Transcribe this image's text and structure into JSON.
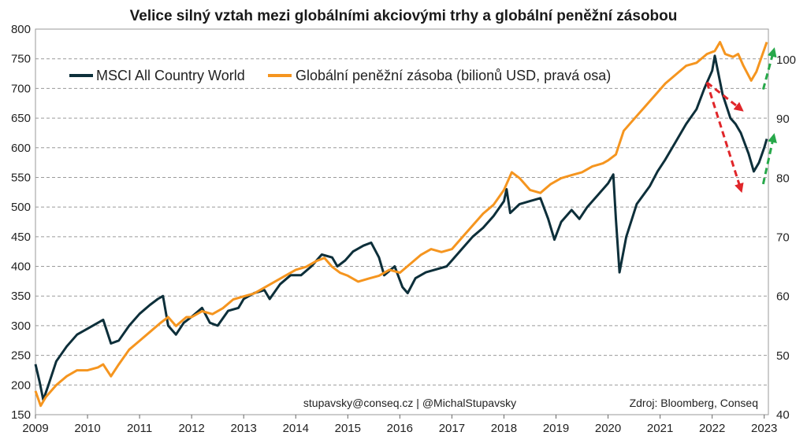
{
  "chart_data": {
    "type": "line",
    "title": "Velice silný vztah mezi globálními akciovými trhy a globální peněžní zásobou",
    "x_ticks": [
      "2009",
      "2010",
      "2011",
      "2012",
      "2013",
      "2014",
      "2015",
      "2016",
      "2017",
      "2018",
      "2019",
      "2020",
      "2021",
      "2022",
      "2023"
    ],
    "y_left": {
      "lim": [
        150,
        800
      ],
      "ticks": [
        150,
        200,
        250,
        300,
        350,
        400,
        450,
        500,
        550,
        600,
        650,
        700,
        750,
        800
      ]
    },
    "y_right": {
      "lim": [
        40,
        105.2
      ],
      "ticks": [
        40,
        50,
        60,
        70,
        80,
        90,
        100
      ]
    },
    "grid": true,
    "legend_position": "top-left",
    "series": [
      {
        "name": "MSCI All Country World",
        "axis": "left",
        "color": "#0d2f3a",
        "points": [
          [
            2009.0,
            235
          ],
          [
            2009.08,
            205
          ],
          [
            2009.15,
            175
          ],
          [
            2009.25,
            200
          ],
          [
            2009.4,
            240
          ],
          [
            2009.6,
            265
          ],
          [
            2009.8,
            285
          ],
          [
            2010.0,
            295
          ],
          [
            2010.2,
            305
          ],
          [
            2010.3,
            310
          ],
          [
            2010.45,
            270
          ],
          [
            2010.6,
            275
          ],
          [
            2010.8,
            300
          ],
          [
            2011.0,
            320
          ],
          [
            2011.2,
            335
          ],
          [
            2011.35,
            345
          ],
          [
            2011.45,
            350
          ],
          [
            2011.55,
            300
          ],
          [
            2011.7,
            285
          ],
          [
            2011.85,
            305
          ],
          [
            2012.0,
            315
          ],
          [
            2012.2,
            330
          ],
          [
            2012.35,
            305
          ],
          [
            2012.5,
            300
          ],
          [
            2012.7,
            325
          ],
          [
            2012.9,
            330
          ],
          [
            2013.0,
            345
          ],
          [
            2013.2,
            355
          ],
          [
            2013.4,
            360
          ],
          [
            2013.5,
            345
          ],
          [
            2013.7,
            370
          ],
          [
            2013.9,
            385
          ],
          [
            2014.1,
            385
          ],
          [
            2014.3,
            400
          ],
          [
            2014.5,
            420
          ],
          [
            2014.7,
            415
          ],
          [
            2014.8,
            400
          ],
          [
            2014.95,
            410
          ],
          [
            2015.1,
            425
          ],
          [
            2015.3,
            435
          ],
          [
            2015.45,
            440
          ],
          [
            2015.6,
            415
          ],
          [
            2015.7,
            385
          ],
          [
            2015.9,
            400
          ],
          [
            2016.05,
            365
          ],
          [
            2016.15,
            355
          ],
          [
            2016.3,
            380
          ],
          [
            2016.5,
            390
          ],
          [
            2016.7,
            395
          ],
          [
            2016.9,
            400
          ],
          [
            2017.0,
            410
          ],
          [
            2017.2,
            430
          ],
          [
            2017.4,
            450
          ],
          [
            2017.6,
            465
          ],
          [
            2017.8,
            485
          ],
          [
            2018.0,
            510
          ],
          [
            2018.05,
            530
          ],
          [
            2018.12,
            490
          ],
          [
            2018.3,
            505
          ],
          [
            2018.5,
            510
          ],
          [
            2018.7,
            515
          ],
          [
            2018.85,
            480
          ],
          [
            2018.97,
            445
          ],
          [
            2019.1,
            475
          ],
          [
            2019.3,
            495
          ],
          [
            2019.45,
            480
          ],
          [
            2019.6,
            500
          ],
          [
            2019.8,
            520
          ],
          [
            2020.0,
            540
          ],
          [
            2020.1,
            555
          ],
          [
            2020.15,
            480
          ],
          [
            2020.22,
            390
          ],
          [
            2020.35,
            450
          ],
          [
            2020.55,
            505
          ],
          [
            2020.8,
            535
          ],
          [
            2020.95,
            560
          ],
          [
            2021.1,
            580
          ],
          [
            2021.3,
            610
          ],
          [
            2021.5,
            640
          ],
          [
            2021.7,
            665
          ],
          [
            2021.85,
            700
          ],
          [
            2022.0,
            730
          ],
          [
            2022.05,
            755
          ],
          [
            2022.2,
            690
          ],
          [
            2022.35,
            650
          ],
          [
            2022.45,
            640
          ],
          [
            2022.55,
            625
          ],
          [
            2022.7,
            590
          ],
          [
            2022.8,
            560
          ],
          [
            2022.9,
            575
          ],
          [
            2023.0,
            600
          ],
          [
            2023.05,
            615
          ]
        ]
      },
      {
        "name": "Globální peněžní zásoba (bilionů USD, pravá osa)",
        "axis": "right",
        "color": "#f5951f",
        "points": [
          [
            2009.0,
            44
          ],
          [
            2009.1,
            41.5
          ],
          [
            2009.2,
            43
          ],
          [
            2009.4,
            45
          ],
          [
            2009.6,
            46.5
          ],
          [
            2009.8,
            47.5
          ],
          [
            2010.0,
            47.5
          ],
          [
            2010.2,
            48
          ],
          [
            2010.3,
            48.5
          ],
          [
            2010.45,
            46.5
          ],
          [
            2010.6,
            48.5
          ],
          [
            2010.8,
            51
          ],
          [
            2011.0,
            52.5
          ],
          [
            2011.2,
            54
          ],
          [
            2011.4,
            55.5
          ],
          [
            2011.55,
            56.5
          ],
          [
            2011.7,
            55
          ],
          [
            2011.9,
            56.5
          ],
          [
            2012.0,
            56.5
          ],
          [
            2012.2,
            57.5
          ],
          [
            2012.4,
            57
          ],
          [
            2012.6,
            58
          ],
          [
            2012.8,
            59.5
          ],
          [
            2013.0,
            60
          ],
          [
            2013.2,
            60.5
          ],
          [
            2013.4,
            61.5
          ],
          [
            2013.6,
            62.5
          ],
          [
            2013.8,
            63.5
          ],
          [
            2014.0,
            64.5
          ],
          [
            2014.2,
            65
          ],
          [
            2014.4,
            66
          ],
          [
            2014.55,
            66.5
          ],
          [
            2014.7,
            65
          ],
          [
            2014.85,
            64
          ],
          [
            2015.0,
            63.5
          ],
          [
            2015.2,
            62.5
          ],
          [
            2015.4,
            63
          ],
          [
            2015.6,
            63.5
          ],
          [
            2015.8,
            64.5
          ],
          [
            2016.0,
            64
          ],
          [
            2016.2,
            65.5
          ],
          [
            2016.4,
            67
          ],
          [
            2016.6,
            68
          ],
          [
            2016.8,
            67.5
          ],
          [
            2017.0,
            68
          ],
          [
            2017.2,
            70
          ],
          [
            2017.4,
            72
          ],
          [
            2017.6,
            74
          ],
          [
            2017.8,
            75.5
          ],
          [
            2018.0,
            78
          ],
          [
            2018.15,
            81
          ],
          [
            2018.3,
            80
          ],
          [
            2018.5,
            78
          ],
          [
            2018.7,
            77.5
          ],
          [
            2018.9,
            79
          ],
          [
            2019.1,
            80
          ],
          [
            2019.3,
            80.5
          ],
          [
            2019.5,
            81
          ],
          [
            2019.7,
            82
          ],
          [
            2019.9,
            82.5
          ],
          [
            2020.0,
            83
          ],
          [
            2020.15,
            84
          ],
          [
            2020.3,
            88
          ],
          [
            2020.5,
            90
          ],
          [
            2020.7,
            92
          ],
          [
            2020.9,
            94
          ],
          [
            2021.1,
            96
          ],
          [
            2021.3,
            97.5
          ],
          [
            2021.5,
            99
          ],
          [
            2021.7,
            99.5
          ],
          [
            2021.9,
            101
          ],
          [
            2022.05,
            101.5
          ],
          [
            2022.15,
            103
          ],
          [
            2022.25,
            101
          ],
          [
            2022.4,
            100.5
          ],
          [
            2022.5,
            101
          ],
          [
            2022.6,
            99
          ],
          [
            2022.75,
            96.5
          ],
          [
            2022.85,
            98
          ],
          [
            2022.95,
            100.5
          ],
          [
            2023.05,
            103
          ]
        ]
      }
    ],
    "annotations": [
      {
        "type": "arrow",
        "color": "#e0262a",
        "from": [
          2021.9,
          710
        ],
        "to": [
          2022.55,
          665
        ]
      },
      {
        "type": "arrow",
        "color": "#e0262a",
        "from": [
          2021.9,
          710
        ],
        "to": [
          2022.55,
          530
        ]
      },
      {
        "type": "arrow",
        "color": "#27a84a",
        "from": [
          2022.98,
          95
        ],
        "to": [
          2023.18,
          101.5
        ],
        "axis": "right"
      },
      {
        "type": "arrow",
        "color": "#27a84a",
        "from": [
          2022.98,
          79
        ],
        "to": [
          2023.18,
          87
        ],
        "axis": "right"
      }
    ],
    "credit_left": "stupavsky@conseq.cz  |  @MichalStupavsky",
    "credit_right": "Zdroj: Bloomberg, Conseq"
  }
}
